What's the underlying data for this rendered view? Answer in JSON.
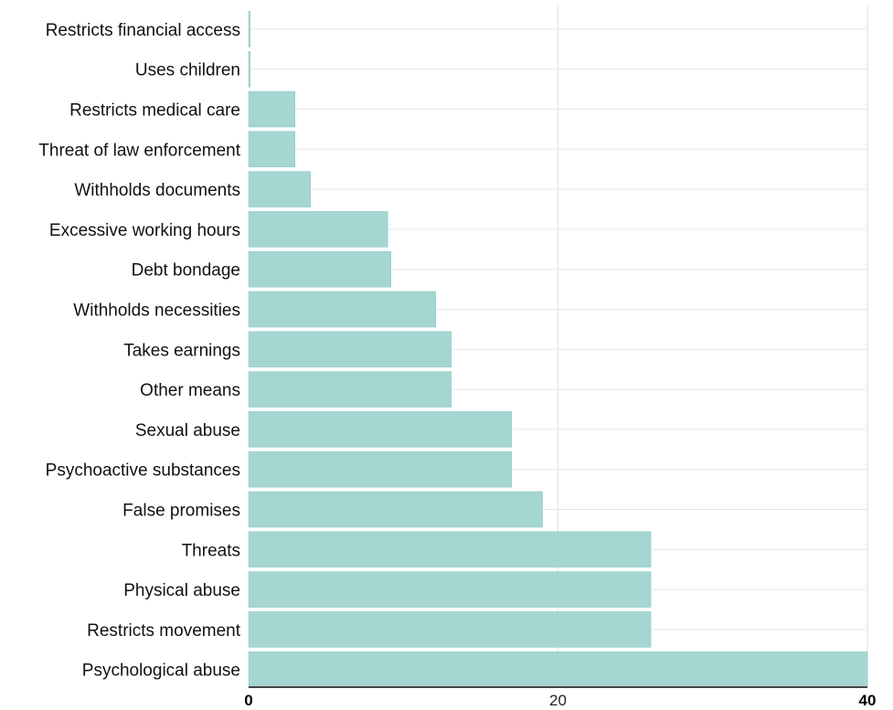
{
  "chart_data": {
    "type": "bar",
    "orientation": "horizontal",
    "title": "",
    "xlabel": "",
    "ylabel": "",
    "categories": [
      "Restricts financial access",
      "Uses children",
      "Restricts medical care",
      "Threat of law enforcement",
      "Withholds documents",
      "Excessive working hours",
      "Debt bondage",
      "Withholds necessities",
      "Takes earnings",
      "Other means",
      "Sexual abuse",
      "Psychoactive substances",
      "False promises",
      "Threats",
      "Physical abuse",
      "Restricts movement",
      "Psychological abuse"
    ],
    "values": [
      0.1,
      0.1,
      3,
      3,
      4,
      9,
      9.2,
      12.1,
      13.1,
      13.1,
      17,
      17,
      19,
      26,
      26,
      26,
      40
    ],
    "xlim": [
      0,
      40
    ],
    "xticks": [
      {
        "value": 0,
        "label": "0"
      },
      {
        "value": 20,
        "label": "20"
      },
      {
        "value": 40,
        "label": "40"
      }
    ],
    "grid": true,
    "colors": {
      "bar": "#a5d6d2",
      "bar_edge": "#8ccac4",
      "grid": "#e6e6e6",
      "axis": "#444444"
    }
  }
}
